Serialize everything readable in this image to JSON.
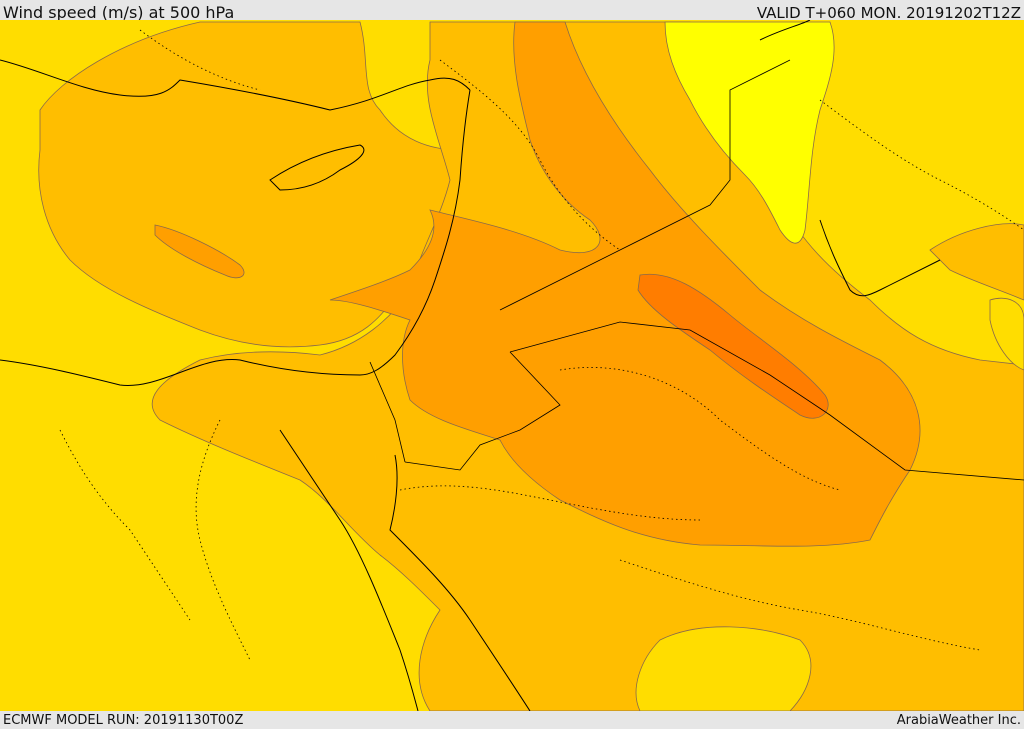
{
  "header": {
    "title": "Wind speed (m/s) at 500 hPa",
    "valid": "VALID T+060 MON. 20191202T12Z"
  },
  "footer": {
    "model_run": "ECMWF MODEL RUN: 20191130T00Z",
    "credit": "ArabiaWeather Inc."
  },
  "map": {
    "colors": {
      "band_lowest": "#ffff00",
      "band_low": "#ffdd00",
      "band_mid": "#ffbe00",
      "band_high": "#ff9f00",
      "band_highest": "#ff7d00",
      "coast": "#000000",
      "contour": "#8a6a4a"
    }
  }
}
